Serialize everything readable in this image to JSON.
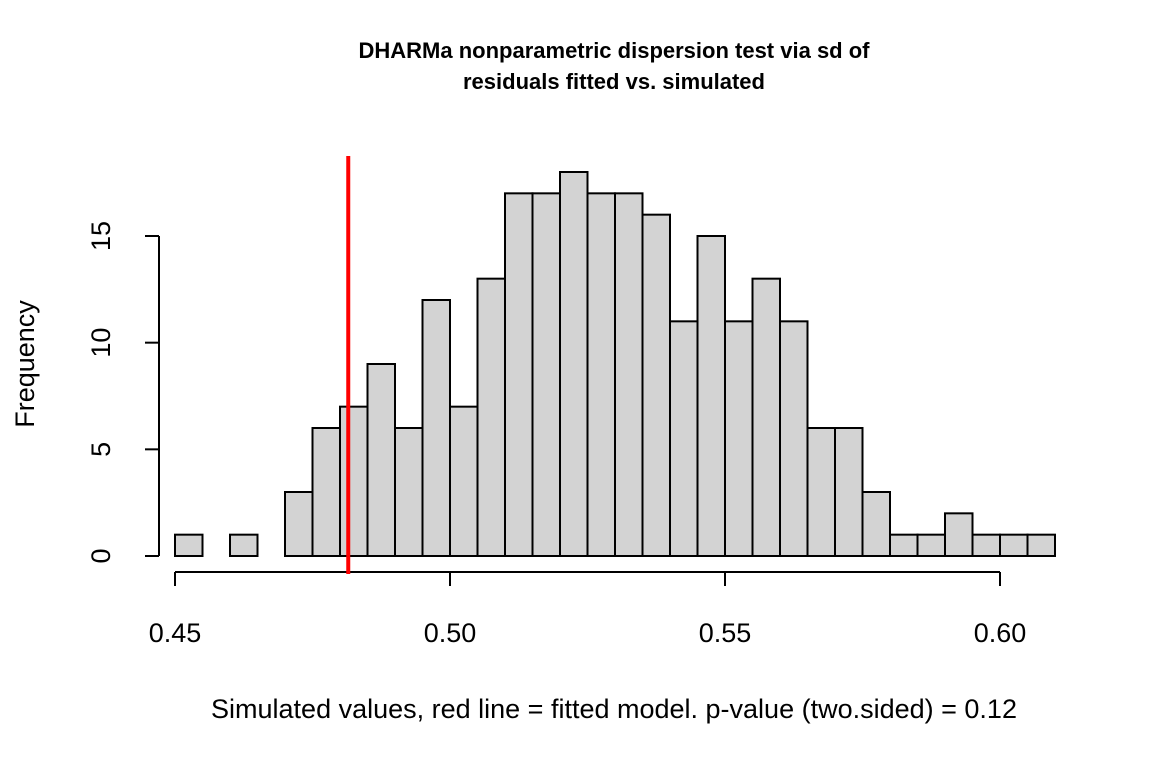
{
  "chart_data": {
    "type": "bar",
    "title": [
      "DHARMa nonparametric dispersion test via sd of",
      "residuals fitted vs. simulated"
    ],
    "xlabel": "Simulated values, red line = fitted model. p-value (two.sided) = 0.12",
    "ylabel": "Frequency",
    "bin_width": 0.005,
    "bins_start": [
      0.45,
      0.455,
      0.46,
      0.465,
      0.47,
      0.475,
      0.48,
      0.485,
      0.49,
      0.495,
      0.5,
      0.505,
      0.51,
      0.515,
      0.52,
      0.525,
      0.53,
      0.535,
      0.54,
      0.545,
      0.55,
      0.555,
      0.56,
      0.565,
      0.57,
      0.575,
      0.58,
      0.585,
      0.59,
      0.595,
      0.6,
      0.605
    ],
    "counts": [
      1,
      0,
      1,
      0,
      3,
      6,
      7,
      9,
      6,
      12,
      7,
      13,
      17,
      17,
      18,
      17,
      17,
      16,
      11,
      15,
      11,
      13,
      11,
      6,
      6,
      3,
      1,
      1,
      2,
      1,
      1,
      1
    ],
    "observed_value": 0.4815,
    "xlim": [
      0.45,
      0.61
    ],
    "ylim": [
      0,
      18
    ],
    "x_ticks": [
      0.45,
      0.5,
      0.55,
      0.6
    ],
    "x_tick_labels": [
      "0.45",
      "0.50",
      "0.55",
      "0.60"
    ],
    "y_ticks": [
      0,
      5,
      10,
      15
    ],
    "y_tick_labels": [
      "0",
      "5",
      "10",
      "15"
    ],
    "bar_fill": "#d3d3d3",
    "bar_stroke": "#000000",
    "line_color": "#ff0000",
    "grid": false,
    "legend": "none"
  }
}
